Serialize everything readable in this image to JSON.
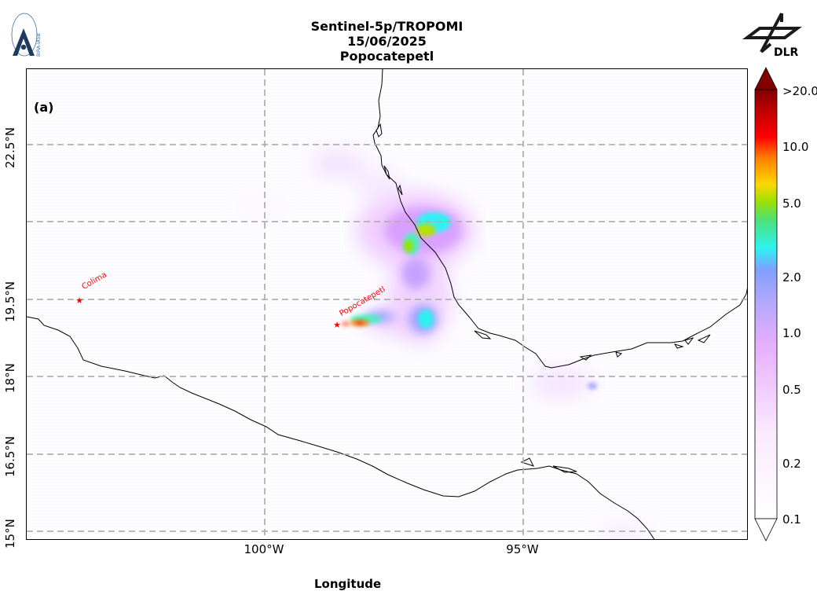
{
  "header": {
    "title_line1": "Sentinel-5p/TROPOMI",
    "title_line2": "15/06/2025",
    "title_line3": "Popocatepetl"
  },
  "logos": {
    "left_text": "BIRA-IASB",
    "right_text": "DLR"
  },
  "map": {
    "panel_label": "(a)",
    "x_axis_label": "Longitude",
    "x_ticks": [
      "100°W",
      "95°W"
    ],
    "y_ticks": [
      "22.5°N",
      "19.5°N",
      "18°N",
      "16.5°N",
      "15°N"
    ],
    "lon_range": [
      -104.6,
      -90.65
    ],
    "lat_range": [
      14.9,
      24.05
    ],
    "volcanoes": [
      {
        "name": "Colima",
        "lon": -103.62,
        "lat": 19.51
      },
      {
        "name": "Popocatepetl",
        "lon": -98.62,
        "lat": 19.02
      }
    ],
    "gridline_style": "dashed",
    "volcano_marker_color": "#ff0000"
  },
  "colorbar": {
    "scale": "log",
    "range": [
      0.1,
      20.0
    ],
    "tick_labels": [
      ">20.0",
      "10.0",
      "5.0",
      "2.0",
      "1.0",
      "0.5",
      "0.2",
      "0.1"
    ],
    "colors": [
      "#ffffff",
      "#f7d9ff",
      "#e8a8ff",
      "#9ea0ff",
      "#2ef2f2",
      "#7ee000",
      "#ffd700",
      "#ff7f00",
      "#ff0000",
      "#800000"
    ]
  }
}
